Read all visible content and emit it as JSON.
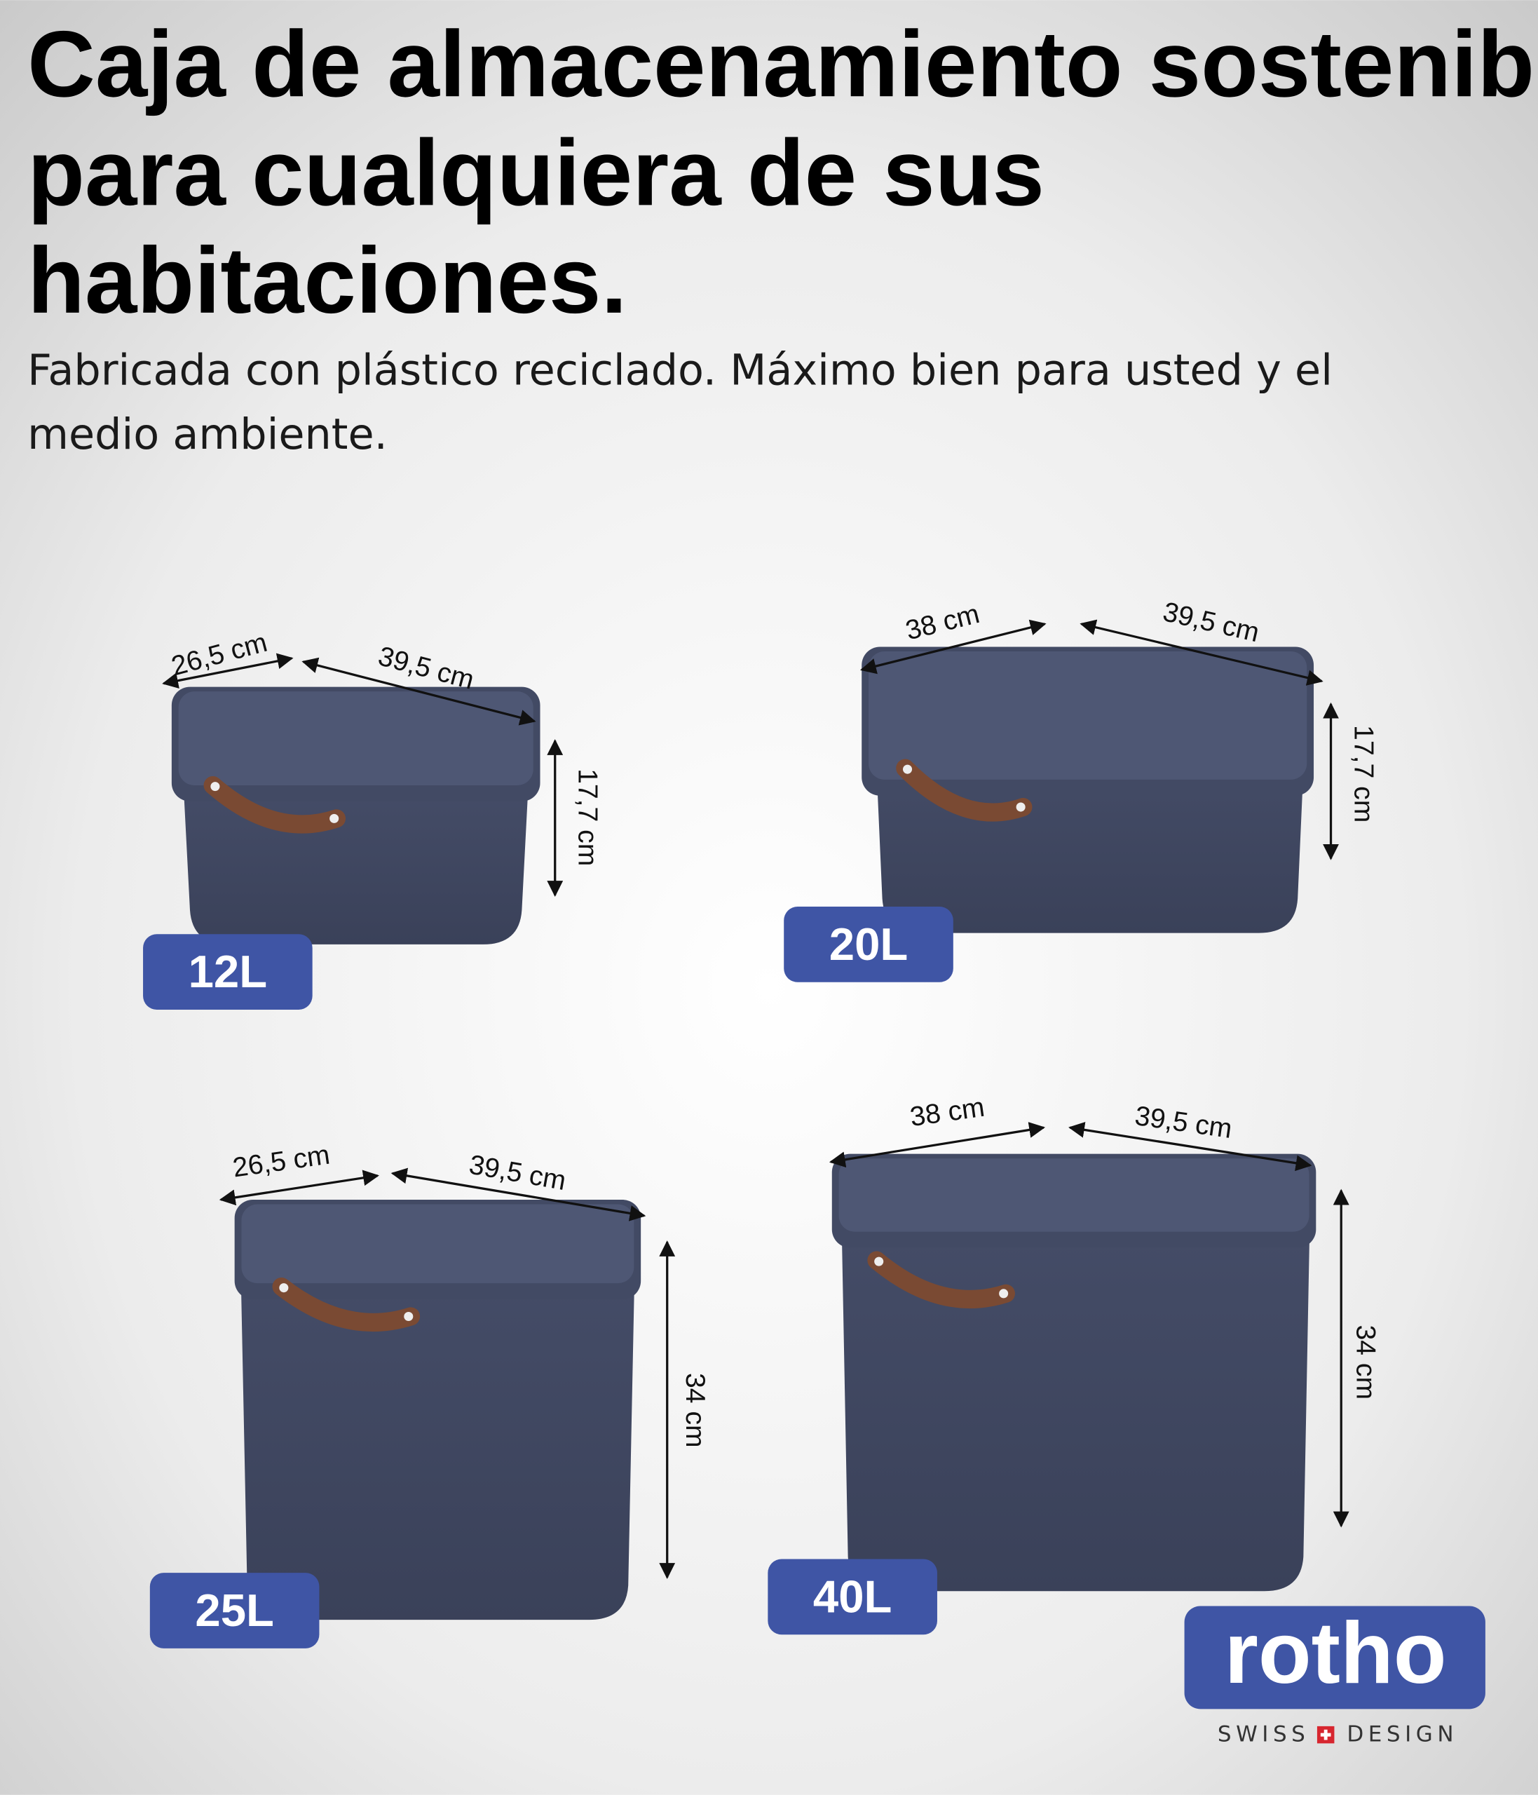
{
  "header": {
    "title_lines": [
      "Caja de almacenamiento sostenible",
      "para cualquiera de sus",
      "habitaciones."
    ],
    "subtitle_lines": [
      "Fabricada con plástico reciclado. Máximo bien para usted y el",
      "medio ambiente."
    ]
  },
  "products": [
    {
      "capacity": "12L",
      "depth": "26,5 cm",
      "width": "39,5 cm",
      "height": "17,7 cm"
    },
    {
      "capacity": "20L",
      "depth": "38 cm",
      "width": "39,5 cm",
      "height": "17,7 cm"
    },
    {
      "capacity": "25L",
      "depth": "26,5 cm",
      "width": "39,5 cm",
      "height": "34 cm"
    },
    {
      "capacity": "40L",
      "depth": "38 cm",
      "width": "39,5 cm",
      "height": "34 cm"
    }
  ],
  "brand": {
    "name": "rotho",
    "tagline_left": "SWISS",
    "tagline_right": "DESIGN"
  }
}
